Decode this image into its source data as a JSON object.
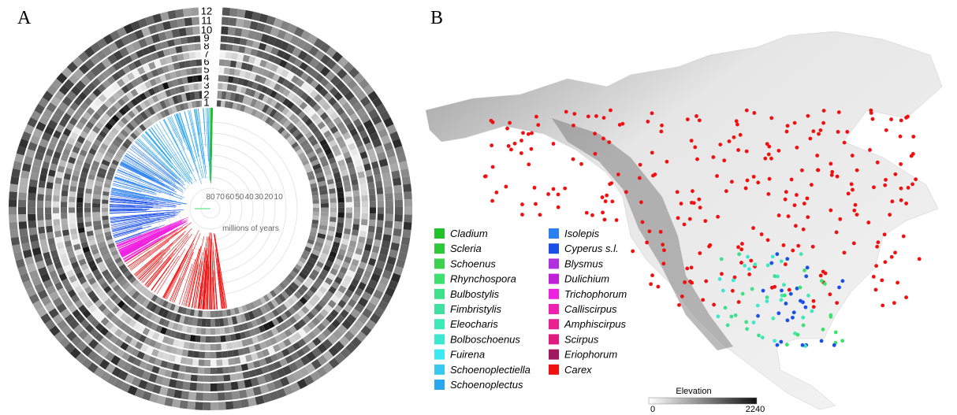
{
  "panel_a": {
    "label": "A",
    "ring_numbers": [
      "1",
      "2",
      "3",
      "4",
      "5",
      "6",
      "7",
      "8",
      "9",
      "10",
      "11",
      "12"
    ],
    "time_ticks": [
      "80",
      "70",
      "60",
      "50",
      "40",
      "30",
      "20",
      "10"
    ],
    "time_label": "millions of years"
  },
  "panel_b": {
    "label": "B",
    "legend": [
      {
        "name": "Cladium",
        "color": "#22c02a"
      },
      {
        "name": "Scleria",
        "color": "#2ec83a"
      },
      {
        "name": "Schoenus",
        "color": "#3bd14f"
      },
      {
        "name": "Rhynchospora",
        "color": "#3ee06f"
      },
      {
        "name": "Bulbostylis",
        "color": "#3fe08a"
      },
      {
        "name": "Fimbristylis",
        "color": "#40e0a0"
      },
      {
        "name": "Eleocharis",
        "color": "#3ee8b8"
      },
      {
        "name": "Bolboschoenus",
        "color": "#3ce8d0"
      },
      {
        "name": "Fuirena",
        "color": "#3ee8f0"
      },
      {
        "name": "Schoenoplectiella",
        "color": "#39c8f0"
      },
      {
        "name": "Schoenoplectus",
        "color": "#2aa5f0"
      },
      {
        "name": "Isolepis",
        "color": "#2a80f0"
      },
      {
        "name": "Cyperus s.l.",
        "color": "#1a50e8"
      },
      {
        "name": "Blysmus",
        "color": "#b030e0"
      },
      {
        "name": "Dulichium",
        "color": "#c020d8"
      },
      {
        "name": "Trichophorum",
        "color": "#f020e0"
      },
      {
        "name": "Calliscirpus",
        "color": "#f020b0"
      },
      {
        "name": "Amphiscirpus",
        "color": "#e82090"
      },
      {
        "name": "Scirpus",
        "color": "#e01a80"
      },
      {
        "name": "Eriophorum",
        "color": "#a01860"
      },
      {
        "name": "Carex",
        "color": "#f01010"
      }
    ],
    "colorbar": {
      "title": "Elevation",
      "min_label": "0",
      "max_label": "2240"
    }
  }
}
